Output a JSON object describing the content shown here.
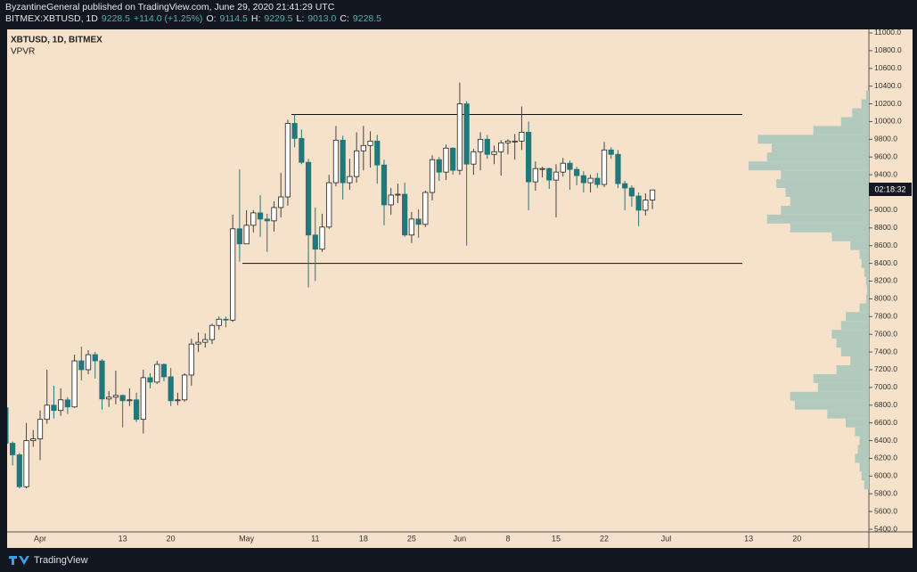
{
  "header": {
    "author_line": "ByzantineGeneral published on TradingView.com, June 29, 2020 21:41:29 UTC",
    "symbol": "BITMEX:XBTUSD, 1D",
    "last": "9228.5",
    "change": "+114.0 (+1.25%)",
    "ohlc": [
      {
        "label": "O:",
        "value": "9114.5"
      },
      {
        "label": "H:",
        "value": "9229.5"
      },
      {
        "label": "L:",
        "value": "9013.0"
      },
      {
        "label": "C:",
        "value": "9228.5"
      }
    ]
  },
  "footer": {
    "brand": "TradingView"
  },
  "chart_data": {
    "type": "candlestick",
    "title": "XBTUSD, 1D, BITMEX",
    "indicator": "VPVR",
    "countdown": "02:18:32",
    "up_color": "#ffffff",
    "down_color": "#22777b",
    "grid": false,
    "categories": [
      null,
      null,
      null,
      null,
      null,
      "Apr",
      null,
      null,
      null,
      null,
      null,
      null,
      null,
      null,
      null,
      null,
      null,
      "13",
      null,
      null,
      null,
      null,
      null,
      null,
      "20",
      null,
      null,
      null,
      null,
      null,
      null,
      null,
      null,
      null,
      null,
      "May",
      null,
      null,
      null,
      null,
      null,
      null,
      null,
      null,
      null,
      "11",
      null,
      null,
      null,
      null,
      null,
      null,
      "18",
      null,
      null,
      null,
      null,
      null,
      null,
      "25",
      null,
      null,
      null,
      null,
      null,
      null,
      "Jun",
      null,
      null,
      null,
      null,
      null,
      null,
      "8",
      null,
      null,
      null,
      null,
      null,
      null,
      "15",
      null,
      null,
      null,
      null,
      null,
      null,
      "22",
      null,
      null,
      null,
      null,
      null,
      null,
      null,
      null,
      "Jul",
      null,
      null,
      null,
      null,
      null,
      null,
      null,
      null,
      null,
      null,
      null,
      "13",
      null,
      null,
      null,
      null,
      null,
      null,
      "20",
      null,
      null,
      null,
      null,
      null,
      null,
      null,
      null,
      null,
      null
    ],
    "open": [
      6770,
      6370,
      6240,
      5880,
      6400,
      6420,
      6640,
      6800,
      6740,
      6860,
      6780,
      7300,
      7200,
      7370,
      7300,
      6870,
      6890,
      6910,
      6850,
      6860,
      6640,
      7110,
      7060,
      7260,
      7120,
      6850,
      6860,
      7140,
      7490,
      7510,
      7540,
      7700,
      7770,
      7760,
      8790,
      8620,
      8830,
      8970,
      8900,
      8880,
      9030,
      9150,
      9980,
      9810,
      9540,
      8720,
      8560,
      8810,
      9310,
      9790,
      9310,
      9380,
      9670,
      9730,
      9780,
      9510,
      9060,
      9170,
      9180,
      8720,
      8900,
      8840,
      9200,
      9570,
      9430,
      9700,
      9450,
      10200,
      9520,
      9660,
      9800,
      9630,
      9660,
      9760,
      9780,
      9780,
      9880,
      9320,
      9470,
      9470,
      9340,
      9430,
      9530,
      9460,
      9390,
      9310,
      9360,
      9290,
      9680,
      9630,
      9300,
      9250,
      9160,
      9000,
      9114.5,
      null,
      null,
      null,
      null,
      null,
      null,
      null,
      null,
      null,
      null,
      null,
      null,
      null,
      null,
      null,
      null,
      null,
      null,
      null,
      null,
      null,
      null,
      null,
      null,
      null,
      null,
      null,
      null,
      null,
      null,
      null
    ],
    "high": [
      6880,
      6390,
      6260,
      6600,
      6520,
      6740,
      7200,
      7020,
      6990,
      6890,
      7370,
      7460,
      7420,
      7400,
      7320,
      6960,
      7190,
      6920,
      6990,
      6940,
      7200,
      7160,
      7300,
      7270,
      7220,
      6940,
      7160,
      7550,
      7620,
      7610,
      7720,
      7800,
      7800,
      8950,
      9460,
      9000,
      9000,
      9170,
      8960,
      9100,
      9420,
      10020,
      10080,
      9910,
      9580,
      9030,
      8960,
      9400,
      9950,
      9840,
      9580,
      9880,
      9950,
      9890,
      9850,
      9570,
      9250,
      9300,
      9310,
      8980,
      9010,
      9220,
      9620,
      9600,
      9740,
      9710,
      10440,
      10230,
      9690,
      9880,
      9850,
      9730,
      9790,
      9800,
      9860,
      10170,
      10000,
      9550,
      9490,
      9480,
      9520,
      9590,
      9560,
      9490,
      9440,
      9400,
      9420,
      9770,
      9710,
      9680,
      9330,
      9280,
      9200,
      9190,
      9229.5,
      null,
      null,
      null,
      null,
      null,
      null,
      null,
      null,
      null,
      null,
      null,
      null,
      null,
      null,
      null,
      null,
      null,
      null,
      null,
      null,
      null,
      null,
      null,
      null,
      null,
      null,
      null,
      null,
      null,
      null,
      null
    ],
    "low": [
      6320,
      6120,
      5860,
      5860,
      6330,
      6180,
      6590,
      6650,
      6680,
      6700,
      6770,
      7080,
      7150,
      7100,
      6750,
      6780,
      6810,
      6550,
      6790,
      6610,
      6480,
      6990,
      7040,
      7070,
      6790,
      6800,
      6840,
      7020,
      7400,
      7450,
      7490,
      7650,
      7680,
      7740,
      8420,
      8620,
      8750,
      8700,
      8530,
      8760,
      8920,
      9050,
      9710,
      9520,
      8130,
      8200,
      8530,
      8790,
      9270,
      9120,
      9230,
      9310,
      9450,
      9480,
      9300,
      8830,
      8950,
      9080,
      8700,
      8630,
      8690,
      8810,
      9110,
      9330,
      9340,
      9400,
      9400,
      8600,
      9400,
      9450,
      9580,
      9520,
      9390,
      9630,
      9570,
      9680,
      9000,
      9220,
      9370,
      9240,
      8920,
      9380,
      9230,
      9280,
      9200,
      9200,
      9250,
      9260,
      9580,
      9250,
      9000,
      9040,
      8820,
      8940,
      9013,
      null,
      null,
      null,
      null,
      null,
      null,
      null,
      null,
      null,
      null,
      null,
      null,
      null,
      null,
      null,
      null,
      null,
      null,
      null,
      null,
      null,
      null,
      null,
      null,
      null,
      null,
      null,
      null,
      null,
      null,
      null
    ],
    "close": [
      6370,
      6240,
      5880,
      6400,
      6420,
      6640,
      6800,
      6740,
      6860,
      6780,
      7300,
      7200,
      7370,
      7300,
      6870,
      6890,
      6910,
      6850,
      6860,
      6640,
      7110,
      7060,
      7260,
      7120,
      6850,
      6860,
      7140,
      7490,
      7510,
      7540,
      7700,
      7770,
      7760,
      8790,
      8620,
      8830,
      8970,
      8900,
      8880,
      9030,
      9150,
      9980,
      9810,
      9540,
      8720,
      8560,
      8810,
      9310,
      9790,
      9310,
      9380,
      9670,
      9730,
      9780,
      9510,
      9060,
      9170,
      9180,
      8720,
      8900,
      8840,
      9200,
      9570,
      9430,
      9700,
      9450,
      10200,
      9520,
      9660,
      9800,
      9630,
      9660,
      9760,
      9780,
      9780,
      9880,
      9320,
      9470,
      9470,
      9340,
      9430,
      9530,
      9460,
      9390,
      9310,
      9360,
      9290,
      9680,
      9630,
      9300,
      9250,
      9160,
      9000,
      9114.5,
      9228.5,
      null,
      null,
      null,
      null,
      null,
      null,
      null,
      null,
      null,
      null,
      null,
      null,
      null,
      null,
      null,
      null,
      null,
      null,
      null,
      null,
      null,
      null,
      null,
      null,
      null,
      null,
      null,
      null,
      null,
      null,
      null
    ],
    "levels": [
      10080,
      8400
    ],
    "vpvr": {
      "color": "#b2c9bd",
      "prices": [
        10300,
        10200,
        10100,
        10000,
        9900,
        9800,
        9700,
        9600,
        9500,
        9400,
        9300,
        9200,
        9100,
        9000,
        8900,
        8800,
        8700,
        8600,
        8500,
        8400,
        8300,
        8200,
        8100,
        8000,
        7900,
        7800,
        7700,
        7600,
        7500,
        7400,
        7300,
        7200,
        7100,
        7000,
        6900,
        6800,
        6700,
        6600,
        6500,
        6400,
        6300,
        6200,
        6100,
        6000,
        5900,
        5800
      ],
      "volumes": [
        3,
        8,
        18,
        30,
        60,
        120,
        105,
        110,
        130,
        95,
        100,
        90,
        85,
        95,
        110,
        85,
        40,
        20,
        10,
        8,
        5,
        3,
        2,
        3,
        10,
        25,
        30,
        40,
        35,
        30,
        20,
        35,
        60,
        55,
        85,
        80,
        45,
        25,
        15,
        10,
        12,
        15,
        10,
        8,
        5,
        0
      ]
    },
    "ylim": [
      5370,
      11040
    ],
    "yticks": [
      {
        "value": 5400,
        "label": "5400.0"
      },
      {
        "value": 5600,
        "label": "5600.0"
      },
      {
        "value": 5800,
        "label": "5800.0"
      },
      {
        "value": 6000,
        "label": "6000.0"
      },
      {
        "value": 6200,
        "label": "6200.0"
      },
      {
        "value": 6400,
        "label": "6400.0"
      },
      {
        "value": 6600,
        "label": "6600.0"
      },
      {
        "value": 6800,
        "label": "6800.0"
      },
      {
        "value": 7000,
        "label": "7000.0"
      },
      {
        "value": 7200,
        "label": "7200.0"
      },
      {
        "value": 7400,
        "label": "7400.0"
      },
      {
        "value": 7600,
        "label": "7600.0"
      },
      {
        "value": 7800,
        "label": "7800.0"
      },
      {
        "value": 8000,
        "label": "8000.0"
      },
      {
        "value": 8200,
        "label": "8200.0"
      },
      {
        "value": 8400,
        "label": "8400.0"
      },
      {
        "value": 8600,
        "label": "8600.0"
      },
      {
        "value": 8800,
        "label": "8800.0"
      },
      {
        "value": 9000,
        "label": "9000.0"
      },
      {
        "value": 9200,
        "label": "9200.0"
      },
      {
        "value": 9400,
        "label": "9400.0"
      },
      {
        "value": 9600,
        "label": "9600.0"
      },
      {
        "value": 9800,
        "label": "9800.0"
      },
      {
        "value": 10000,
        "label": "10000.0"
      },
      {
        "value": 10200,
        "label": "10200.0"
      },
      {
        "value": 10400,
        "label": "10400.0"
      },
      {
        "value": 10600,
        "label": "10600.0"
      },
      {
        "value": 10800,
        "label": "10800.0"
      },
      {
        "value": 11000,
        "label": "11000.0"
      }
    ]
  }
}
